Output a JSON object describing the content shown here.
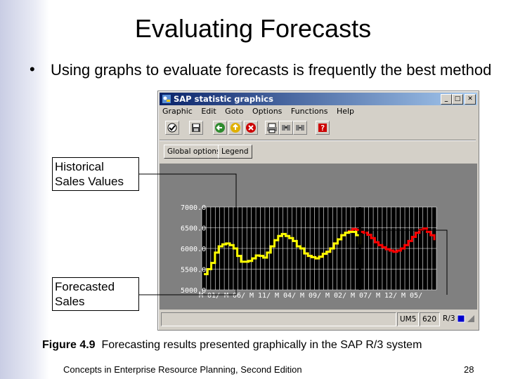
{
  "slide": {
    "title": "Evaluating Forecasts",
    "bullet_mark": "•",
    "bullet_text": "Using graphs to evaluate forecasts is frequently the best method",
    "callout_historical": "Historical Sales Values",
    "callout_forecast": "Forecasted Sales",
    "caption_label": "Figure 4.9",
    "caption_text": "Forecasting results presented graphically in the SAP R/3 system",
    "footer_left": "Concepts in Enterprise Resource Planning, Second Edition",
    "footer_right": "28"
  },
  "window": {
    "title": "SAP statistic graphics",
    "controls": {
      "minimize": "_",
      "maximize": "□",
      "close": "✕"
    },
    "menu": [
      "Graphic",
      "Edit",
      "Goto",
      "Options",
      "Functions",
      "Help"
    ],
    "toolbar_icons": [
      "check-icon",
      "save-icon",
      "back-icon",
      "exit-icon",
      "cancel-icon",
      "print-icon",
      "find-icon",
      "find-next-icon",
      "help-icon"
    ],
    "buttons": {
      "global_options": "Global options",
      "legend": "Legend"
    },
    "status": {
      "f1": "",
      "f2": "UM5",
      "f3": "620",
      "f4": "R/3"
    }
  },
  "chart_data": {
    "type": "line",
    "ylim": [
      5000,
      7000
    ],
    "y_ticks": [
      "7000.0",
      "6500.0",
      "6000.0",
      "5500.0",
      "5000.0"
    ],
    "x_ticks": [
      "M 01/",
      "M 06/",
      "M 11/",
      "M 04/",
      "M 09/",
      "M 02/",
      "M 07/",
      "M 12/",
      "M 05/"
    ],
    "colors": {
      "plot_bg": "#000000",
      "grid": "#ffffff",
      "historical": "#ffff00",
      "forecast": "#ff0000",
      "label": "#ffffff"
    },
    "series": [
      {
        "values": [
          5380,
          5500,
          5650,
          5900,
          6050,
          6100,
          6120,
          6080,
          6000,
          5820,
          5680,
          5680,
          5700,
          5760,
          5830,
          5820,
          5780,
          5900,
          6050,
          6200,
          6300,
          6350,
          6300,
          6250,
          6180,
          6050,
          6000,
          5880,
          5820,
          5790,
          5760,
          5800,
          5870,
          5920,
          6000,
          6120,
          6220,
          6320,
          6380,
          6400,
          6400,
          6320,
          6100
        ]
      },
      {
        "values": [
          null,
          null,
          null,
          null,
          null,
          null,
          null,
          null,
          null,
          null,
          null,
          null,
          null,
          null,
          null,
          null,
          null,
          null,
          null,
          null,
          null,
          null,
          null,
          null,
          null,
          null,
          null,
          5880,
          5820,
          5790,
          5760,
          5800,
          5870,
          5920,
          6000,
          6120,
          6220,
          6320,
          6380,
          6420,
          6470,
          6450,
          6400,
          6380,
          6330,
          6250,
          6150,
          6080,
          6030,
          5980,
          5950,
          5920,
          5950,
          6000,
          6080,
          6180,
          6280,
          6380,
          6450,
          6480,
          6400,
          6320,
          6200
        ]
      }
    ]
  }
}
